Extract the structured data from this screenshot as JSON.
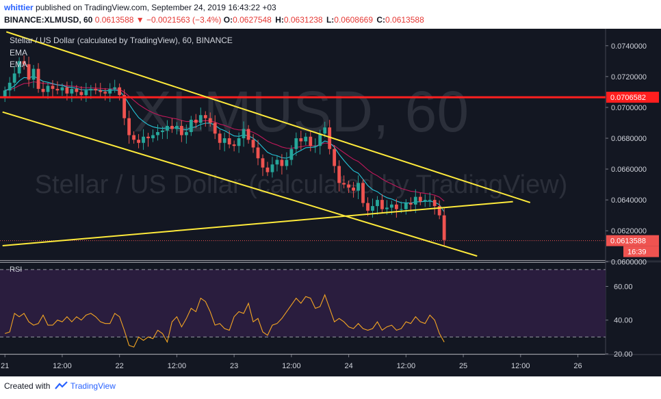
{
  "header": {
    "user": "whittier",
    "published": "published on TradingView.com, September 24, 2019 16:43:22 +03",
    "symbol": "BINANCE:XLMUSD, 60",
    "price": "0.0613588",
    "change": "▼ −0.0021563 (−3.4%)",
    "o_label": "O:",
    "o": "0.0627548",
    "h_label": "H:",
    "h": "0.0631238",
    "l_label": "L:",
    "l": "0.0608669",
    "c_label": "C:",
    "c": "0.0613588"
  },
  "footer": {
    "created_with": "Created with",
    "brand": "TradingView"
  },
  "colors": {
    "up": "#26a69a",
    "down": "#ef5350",
    "trend": "#ffeb3b",
    "resistance": "#ff1f1f",
    "rsi": "#f5a623"
  },
  "chart_data": [
    {
      "type": "candlestick",
      "title": "Stellar / US Dollar (calculated by TradingView), 60, BINANCE",
      "watermark": {
        "symbol": "XLMUSD, 60",
        "description": "Stellar / US Dollar (calculated by TradingView)"
      },
      "indicators": [
        "EMA",
        "EMA"
      ],
      "ylim": [
        0.0601,
        0.0751
      ],
      "y_ticks": [
        "0.0740000",
        "0.0720000",
        "0.0700000",
        "0.0680000",
        "0.0660000",
        "0.0640000",
        "0.0620000",
        "0.0600000"
      ],
      "x_ticks": [
        {
          "t": 0,
          "label": "21"
        },
        {
          "t": 12,
          "label": "12:00"
        },
        {
          "t": 24,
          "label": "22"
        },
        {
          "t": 36,
          "label": "12:00"
        },
        {
          "t": 48,
          "label": "23"
        },
        {
          "t": 60,
          "label": "12:00"
        },
        {
          "t": 72,
          "label": "24"
        },
        {
          "t": 84,
          "label": "12:00"
        },
        {
          "t": 96,
          "label": "25"
        },
        {
          "t": 108,
          "label": "12:00"
        },
        {
          "t": 120,
          "label": "26"
        }
      ],
      "xlim": [
        -0.5,
        125.8
      ],
      "resistance_level": 0.0706582,
      "resistance_label": "0.0706582",
      "last_price": 0.0613588,
      "last_price_label": "0.0613588",
      "countdown": "16:39",
      "trendlines": [
        {
          "t1": 0.3,
          "p1": 0.0749,
          "t2": 110.0,
          "p2": 0.06383
        },
        {
          "t1": -0.5,
          "p1": 0.0697,
          "t2": 98.9,
          "p2": 0.06036
        },
        {
          "t1": -0.5,
          "p1": 0.06103,
          "t2": 106.4,
          "p2": 0.06389
        }
      ],
      "close": [
        0.0711,
        0.0716,
        0.0722,
        0.073,
        0.0728,
        0.0718,
        0.0725,
        0.0712,
        0.071,
        0.0714,
        0.0712,
        0.0711,
        0.0713,
        0.0709,
        0.0712,
        0.071,
        0.0708,
        0.0711,
        0.0712,
        0.0711,
        0.071,
        0.0709,
        0.0712,
        0.0713,
        0.0708,
        0.0693,
        0.0682,
        0.0679,
        0.0677,
        0.0681,
        0.068,
        0.0682,
        0.0684,
        0.0685,
        0.0688,
        0.0686,
        0.0688,
        0.0682,
        0.0684,
        0.0692,
        0.069,
        0.0695,
        0.0693,
        0.069,
        0.0683,
        0.0677,
        0.068,
        0.0676,
        0.0675,
        0.068,
        0.0686,
        0.0679,
        0.0674,
        0.0667,
        0.0661,
        0.0658,
        0.0663,
        0.0666,
        0.0662,
        0.0666,
        0.0673,
        0.068,
        0.0678,
        0.0681,
        0.0675,
        0.0675,
        0.0683,
        0.0687,
        0.0673,
        0.0662,
        0.0651,
        0.065,
        0.0648,
        0.0646,
        0.0651,
        0.0638,
        0.0633,
        0.0636,
        0.064,
        0.0634,
        0.0635,
        0.0637,
        0.0634,
        0.0634,
        0.0638,
        0.0637,
        0.0642,
        0.0639,
        0.064,
        0.064,
        0.0636,
        0.063,
        0.0614
      ],
      "rsi": {
        "ylim": [
          20,
          74
        ],
        "y_ticks": [
          "60.00",
          "40.00",
          "20.00"
        ],
        "bands": [
          70,
          30
        ],
        "values": [
          32,
          33,
          44,
          42,
          44,
          39,
          37,
          38,
          43,
          37,
          37,
          40,
          39,
          42,
          39,
          42,
          40,
          43,
          44,
          42,
          39,
          38,
          38,
          44,
          42,
          34,
          25,
          24,
          30,
          28,
          30,
          29,
          34,
          32,
          27,
          39,
          42,
          36,
          41,
          47,
          45,
          53,
          51,
          45,
          37,
          38,
          35,
          34,
          42,
          45,
          44,
          50,
          39,
          41,
          33,
          31,
          37,
          38,
          41,
          45,
          49,
          53,
          50,
          54,
          53,
          47,
          48,
          55,
          47,
          39,
          41,
          39,
          36,
          35,
          38,
          35,
          34,
          35,
          39,
          34,
          36,
          37,
          34,
          35,
          39,
          38,
          42,
          39,
          38,
          43,
          40,
          32,
          27
        ]
      }
    }
  ]
}
